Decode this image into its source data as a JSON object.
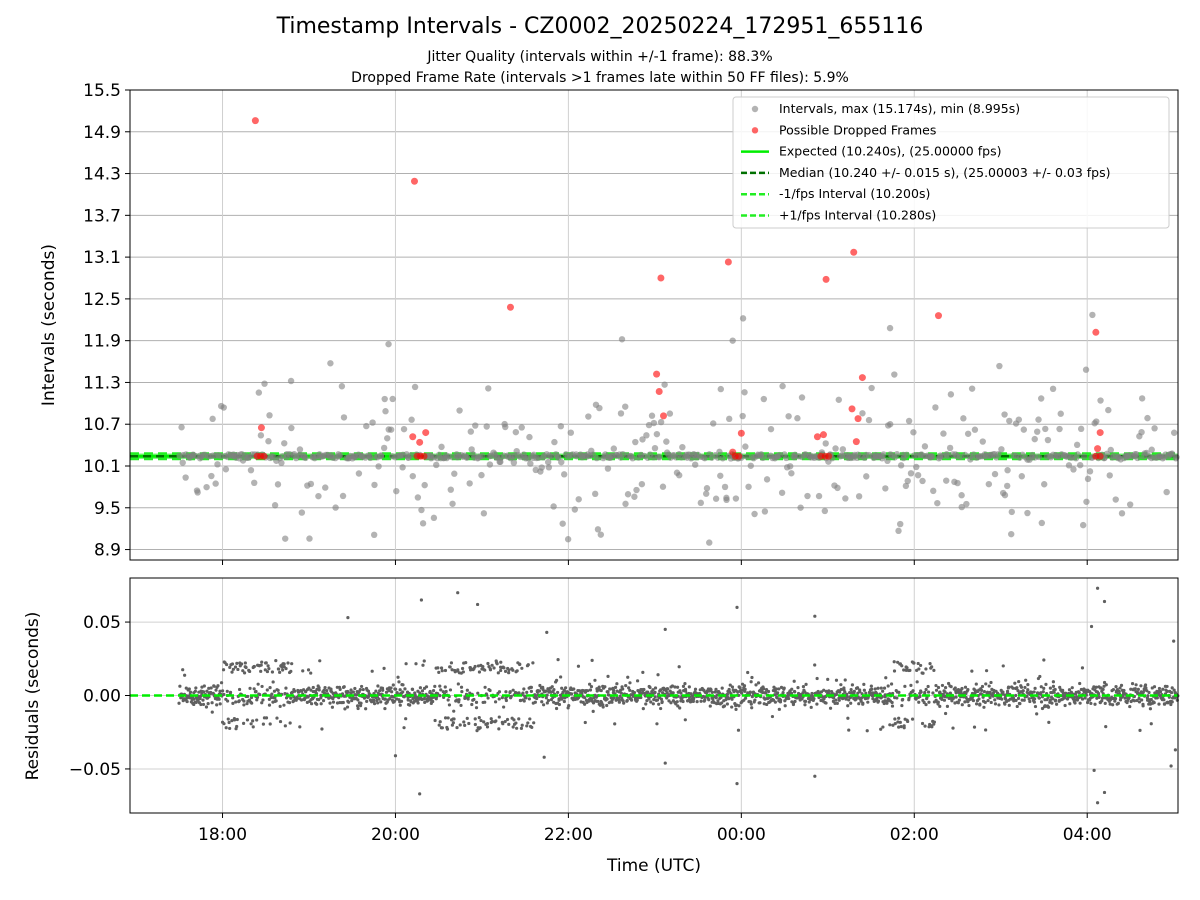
{
  "header": {
    "title": "Timestamp Intervals - CZ0002_20250224_172951_655116",
    "subtitle_1": "Jitter Quality (intervals within +/-1 frame): 88.3%",
    "subtitle_2": "Dropped Frame Rate (intervals >1 frames late within 50 FF files): 5.9%"
  },
  "colors": {
    "intervals": "#808080",
    "dropped": "#ff0000",
    "expected": "#00ee00",
    "median": "#007000",
    "band": "#22ee22",
    "residuals": "#606060",
    "grid": "#b0b0b0"
  },
  "chart_data": [
    {
      "type": "scatter",
      "title": "",
      "xlabel": "",
      "ylabel": "Intervals (seconds)",
      "x_ticks": [
        "18:00",
        "20:00",
        "22:00",
        "00:00",
        "02:00",
        "04:00"
      ],
      "x_tick_hours": [
        18,
        20,
        22,
        24,
        26,
        28
      ],
      "xlim_hours": [
        16.93,
        29.05
      ],
      "ylim": [
        8.75,
        15.5
      ],
      "y_ticks": [
        8.9,
        9.5,
        10.1,
        10.7,
        11.3,
        11.9,
        12.5,
        13.1,
        13.7,
        14.3,
        14.9,
        15.5
      ],
      "grid": true,
      "legend_position": "top-right",
      "legend": [
        "Intervals, max (15.174s), min (8.995s)",
        "Possible Dropped Frames",
        "Expected (10.240s), (25.00000 fps)",
        "Median (10.240 +/- 0.015 s), (25.00003 +/- 0.03 fps)",
        "-1/fps Interval (10.200s)",
        "+1/fps Interval (10.280s)"
      ],
      "expected": 10.24,
      "median": 10.24,
      "lower_band": 10.2,
      "upper_band": 10.28,
      "time_span_hours": [
        17.5,
        29.05
      ],
      "dropped_frames": [
        {
          "x": 18.38,
          "y": 15.06
        },
        {
          "x": 20.22,
          "y": 14.19
        },
        {
          "x": 21.33,
          "y": 12.38
        },
        {
          "x": 23.07,
          "y": 12.8
        },
        {
          "x": 23.85,
          "y": 13.03
        },
        {
          "x": 24.98,
          "y": 12.78
        },
        {
          "x": 25.3,
          "y": 13.17
        },
        {
          "x": 26.28,
          "y": 12.26
        },
        {
          "x": 28.1,
          "y": 12.02
        },
        {
          "x": 23.02,
          "y": 11.42
        },
        {
          "x": 23.05,
          "y": 11.17
        },
        {
          "x": 23.1,
          "y": 10.82
        },
        {
          "x": 25.4,
          "y": 11.37
        },
        {
          "x": 25.35,
          "y": 10.78
        },
        {
          "x": 25.28,
          "y": 10.92
        },
        {
          "x": 24.95,
          "y": 10.55
        },
        {
          "x": 20.35,
          "y": 10.58
        },
        {
          "x": 20.28,
          "y": 10.44
        },
        {
          "x": 18.45,
          "y": 10.65
        },
        {
          "x": 24.0,
          "y": 10.57
        },
        {
          "x": 28.15,
          "y": 10.58
        },
        {
          "x": 25.33,
          "y": 10.45
        },
        {
          "x": 24.88,
          "y": 10.52
        },
        {
          "x": 20.2,
          "y": 10.52
        },
        {
          "x": 23.9,
          "y": 10.3
        },
        {
          "x": 28.12,
          "y": 10.35
        },
        {
          "x": 18.4,
          "y": 10.24
        },
        {
          "x": 18.44,
          "y": 10.24
        },
        {
          "x": 18.48,
          "y": 10.24
        },
        {
          "x": 20.25,
          "y": 10.24
        },
        {
          "x": 20.29,
          "y": 10.24
        },
        {
          "x": 20.33,
          "y": 10.24
        },
        {
          "x": 23.93,
          "y": 10.24
        },
        {
          "x": 23.97,
          "y": 10.24
        },
        {
          "x": 24.92,
          "y": 10.24
        },
        {
          "x": 24.97,
          "y": 10.24
        },
        {
          "x": 25.01,
          "y": 10.24
        },
        {
          "x": 28.1,
          "y": 10.24
        },
        {
          "x": 28.15,
          "y": 10.24
        }
      ]
    },
    {
      "type": "scatter",
      "title": "",
      "xlabel": "Time (UTC)",
      "ylabel": "Residuals (seconds)",
      "x_ticks": [
        "18:00",
        "20:00",
        "22:00",
        "00:00",
        "02:00",
        "04:00"
      ],
      "x_tick_hours": [
        18,
        20,
        22,
        24,
        26,
        28
      ],
      "xlim_hours": [
        16.93,
        29.05
      ],
      "ylim": [
        -0.08,
        0.08
      ],
      "y_ticks": [
        -0.05,
        0.0,
        0.05
      ],
      "y_tick_labels": [
        "−0.05",
        "0.00",
        "0.05"
      ],
      "grid": true,
      "zero_line": 0.0,
      "outliers": [
        {
          "x": 19.45,
          "y": 0.053
        },
        {
          "x": 20.0,
          "y": -0.041
        },
        {
          "x": 20.3,
          "y": 0.065
        },
        {
          "x": 20.28,
          "y": -0.067
        },
        {
          "x": 20.72,
          "y": 0.07
        },
        {
          "x": 20.95,
          "y": 0.062
        },
        {
          "x": 21.75,
          "y": 0.043
        },
        {
          "x": 21.72,
          "y": -0.042
        },
        {
          "x": 23.12,
          "y": 0.045
        },
        {
          "x": 23.12,
          "y": -0.046
        },
        {
          "x": 23.95,
          "y": 0.06
        },
        {
          "x": 23.95,
          "y": -0.06
        },
        {
          "x": 24.85,
          "y": 0.054
        },
        {
          "x": 24.85,
          "y": -0.055
        },
        {
          "x": 28.05,
          "y": 0.047
        },
        {
          "x": 28.12,
          "y": 0.073
        },
        {
          "x": 28.12,
          "y": -0.073
        },
        {
          "x": 28.2,
          "y": 0.064
        },
        {
          "x": 28.2,
          "y": -0.066
        },
        {
          "x": 28.08,
          "y": -0.051
        },
        {
          "x": 28.97,
          "y": -0.048
        },
        {
          "x": 29.0,
          "y": 0.037
        },
        {
          "x": 29.02,
          "y": -0.037
        }
      ],
      "bimodal_ranges_hours": [
        [
          18.0,
          18.8
        ],
        [
          20.45,
          21.6
        ],
        [
          25.75,
          26.25
        ]
      ]
    }
  ]
}
